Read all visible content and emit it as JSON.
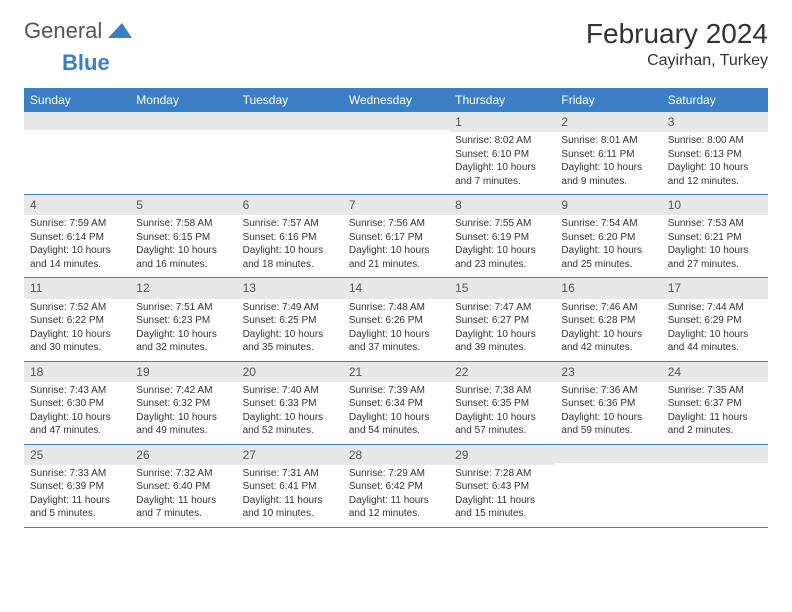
{
  "logo": {
    "general": "General",
    "blue": "Blue"
  },
  "title": "February 2024",
  "location": "Cayirhan, Turkey",
  "colors": {
    "accent": "#3a7fc4",
    "daynum_bg": "#e8e8e8",
    "text": "#333333"
  },
  "weekdays": [
    "Sunday",
    "Monday",
    "Tuesday",
    "Wednesday",
    "Thursday",
    "Friday",
    "Saturday"
  ],
  "first_weekday_index": 4,
  "days": [
    {
      "n": "1",
      "sr": "8:02 AM",
      "ss": "6:10 PM",
      "dl": "10 hours and 7 minutes."
    },
    {
      "n": "2",
      "sr": "8:01 AM",
      "ss": "6:11 PM",
      "dl": "10 hours and 9 minutes."
    },
    {
      "n": "3",
      "sr": "8:00 AM",
      "ss": "6:13 PM",
      "dl": "10 hours and 12 minutes."
    },
    {
      "n": "4",
      "sr": "7:59 AM",
      "ss": "6:14 PM",
      "dl": "10 hours and 14 minutes."
    },
    {
      "n": "5",
      "sr": "7:58 AM",
      "ss": "6:15 PM",
      "dl": "10 hours and 16 minutes."
    },
    {
      "n": "6",
      "sr": "7:57 AM",
      "ss": "6:16 PM",
      "dl": "10 hours and 18 minutes."
    },
    {
      "n": "7",
      "sr": "7:56 AM",
      "ss": "6:17 PM",
      "dl": "10 hours and 21 minutes."
    },
    {
      "n": "8",
      "sr": "7:55 AM",
      "ss": "6:19 PM",
      "dl": "10 hours and 23 minutes."
    },
    {
      "n": "9",
      "sr": "7:54 AM",
      "ss": "6:20 PM",
      "dl": "10 hours and 25 minutes."
    },
    {
      "n": "10",
      "sr": "7:53 AM",
      "ss": "6:21 PM",
      "dl": "10 hours and 27 minutes."
    },
    {
      "n": "11",
      "sr": "7:52 AM",
      "ss": "6:22 PM",
      "dl": "10 hours and 30 minutes."
    },
    {
      "n": "12",
      "sr": "7:51 AM",
      "ss": "6:23 PM",
      "dl": "10 hours and 32 minutes."
    },
    {
      "n": "13",
      "sr": "7:49 AM",
      "ss": "6:25 PM",
      "dl": "10 hours and 35 minutes."
    },
    {
      "n": "14",
      "sr": "7:48 AM",
      "ss": "6:26 PM",
      "dl": "10 hours and 37 minutes."
    },
    {
      "n": "15",
      "sr": "7:47 AM",
      "ss": "6:27 PM",
      "dl": "10 hours and 39 minutes."
    },
    {
      "n": "16",
      "sr": "7:46 AM",
      "ss": "6:28 PM",
      "dl": "10 hours and 42 minutes."
    },
    {
      "n": "17",
      "sr": "7:44 AM",
      "ss": "6:29 PM",
      "dl": "10 hours and 44 minutes."
    },
    {
      "n": "18",
      "sr": "7:43 AM",
      "ss": "6:30 PM",
      "dl": "10 hours and 47 minutes."
    },
    {
      "n": "19",
      "sr": "7:42 AM",
      "ss": "6:32 PM",
      "dl": "10 hours and 49 minutes."
    },
    {
      "n": "20",
      "sr": "7:40 AM",
      "ss": "6:33 PM",
      "dl": "10 hours and 52 minutes."
    },
    {
      "n": "21",
      "sr": "7:39 AM",
      "ss": "6:34 PM",
      "dl": "10 hours and 54 minutes."
    },
    {
      "n": "22",
      "sr": "7:38 AM",
      "ss": "6:35 PM",
      "dl": "10 hours and 57 minutes."
    },
    {
      "n": "23",
      "sr": "7:36 AM",
      "ss": "6:36 PM",
      "dl": "10 hours and 59 minutes."
    },
    {
      "n": "24",
      "sr": "7:35 AM",
      "ss": "6:37 PM",
      "dl": "11 hours and 2 minutes."
    },
    {
      "n": "25",
      "sr": "7:33 AM",
      "ss": "6:39 PM",
      "dl": "11 hours and 5 minutes."
    },
    {
      "n": "26",
      "sr": "7:32 AM",
      "ss": "6:40 PM",
      "dl": "11 hours and 7 minutes."
    },
    {
      "n": "27",
      "sr": "7:31 AM",
      "ss": "6:41 PM",
      "dl": "11 hours and 10 minutes."
    },
    {
      "n": "28",
      "sr": "7:29 AM",
      "ss": "6:42 PM",
      "dl": "11 hours and 12 minutes."
    },
    {
      "n": "29",
      "sr": "7:28 AM",
      "ss": "6:43 PM",
      "dl": "11 hours and 15 minutes."
    }
  ],
  "labels": {
    "sunrise": "Sunrise:",
    "sunset": "Sunset:",
    "daylight": "Daylight:"
  }
}
